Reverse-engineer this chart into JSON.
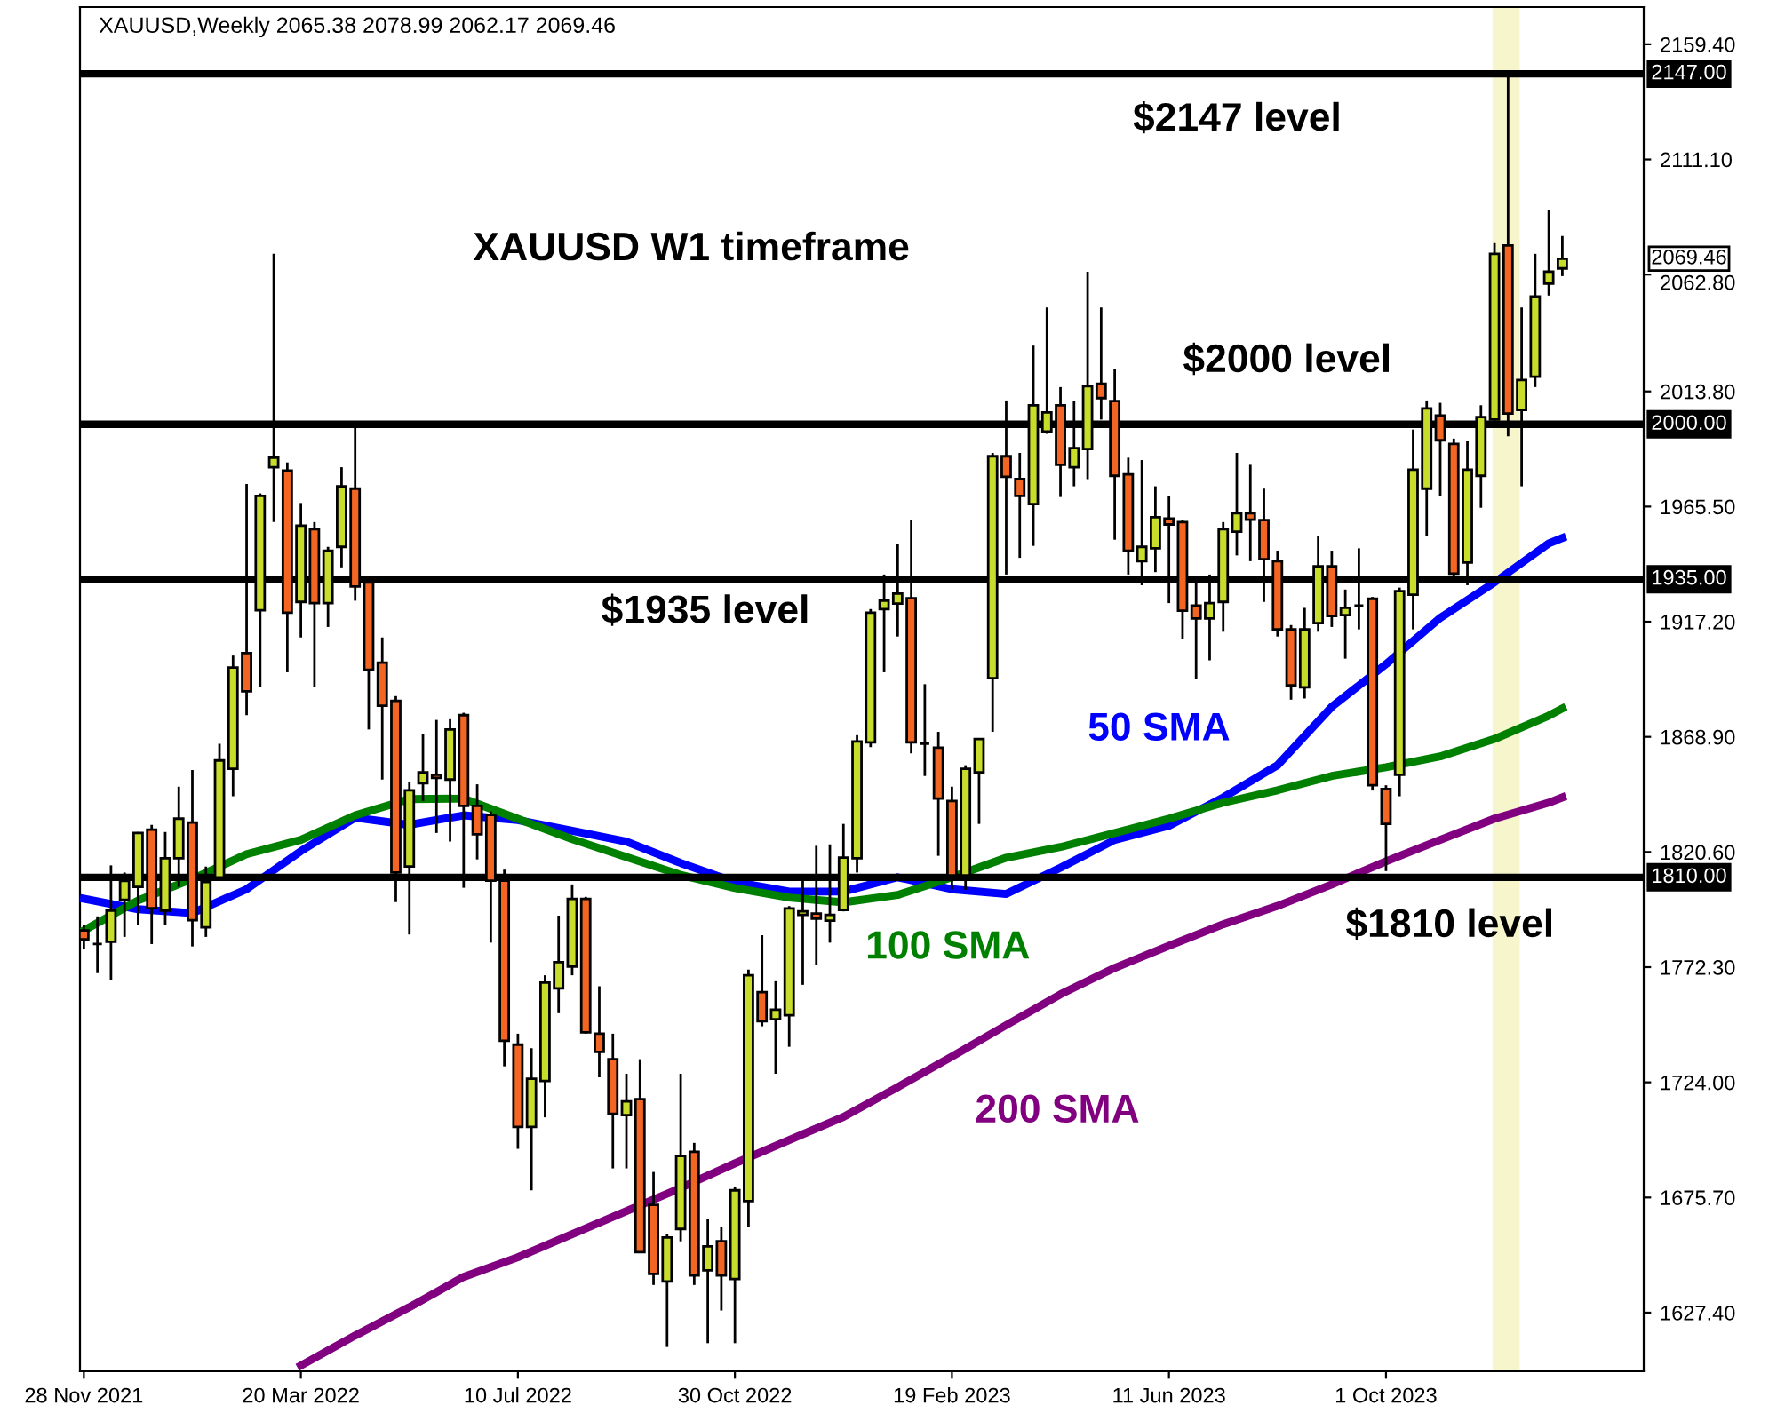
{
  "chart_data": {
    "type": "candlestick",
    "title": "XAUUSD,Weekly 2065.38 2078.99 2062.17 2069.46",
    "x": [
      "2021-11-28",
      "2021-12-05",
      "2021-12-12",
      "2021-12-19",
      "2021-12-26",
      "2022-01-02",
      "2022-01-09",
      "2022-01-16",
      "2022-01-23",
      "2022-01-30",
      "2022-02-06",
      "2022-02-13",
      "2022-02-20",
      "2022-02-27",
      "2022-03-06",
      "2022-03-13",
      "2022-03-20",
      "2022-03-27",
      "2022-04-03",
      "2022-04-10",
      "2022-04-17",
      "2022-04-24",
      "2022-05-01",
      "2022-05-08",
      "2022-05-15",
      "2022-05-22",
      "2022-05-29",
      "2022-06-05",
      "2022-06-12",
      "2022-06-19",
      "2022-06-26",
      "2022-07-03",
      "2022-07-10",
      "2022-07-17",
      "2022-07-24",
      "2022-07-31",
      "2022-08-07",
      "2022-08-14",
      "2022-08-21",
      "2022-08-28",
      "2022-09-04",
      "2022-09-11",
      "2022-09-18",
      "2022-09-25",
      "2022-10-02",
      "2022-10-09",
      "2022-10-16",
      "2022-10-23",
      "2022-10-30",
      "2022-11-06",
      "2022-11-13",
      "2022-11-20",
      "2022-11-27",
      "2022-12-04",
      "2022-12-11",
      "2022-12-18",
      "2022-12-25",
      "2023-01-01",
      "2023-01-08",
      "2023-01-15",
      "2023-01-22",
      "2023-01-29",
      "2023-02-05",
      "2023-02-12",
      "2023-02-19",
      "2023-02-26",
      "2023-03-05",
      "2023-03-12",
      "2023-03-19",
      "2023-03-26",
      "2023-04-02",
      "2023-04-09",
      "2023-04-16",
      "2023-04-23",
      "2023-04-30",
      "2023-05-07",
      "2023-05-14",
      "2023-05-21",
      "2023-05-28",
      "2023-06-04",
      "2023-06-11",
      "2023-06-18",
      "2023-06-25",
      "2023-07-02",
      "2023-07-09",
      "2023-07-16",
      "2023-07-23",
      "2023-07-30",
      "2023-08-06",
      "2023-08-13",
      "2023-08-20",
      "2023-08-27",
      "2023-09-03",
      "2023-09-10",
      "2023-09-17",
      "2023-09-24",
      "2023-10-01",
      "2023-10-08",
      "2023-10-15",
      "2023-10-22",
      "2023-10-29",
      "2023-11-05",
      "2023-11-12",
      "2023-11-19",
      "2023-11-26",
      "2023-12-03",
      "2023-12-10",
      "2023-12-17",
      "2023-12-24",
      "2023-12-31"
    ],
    "ohlc": [
      [
        1787.7,
        1790,
        1780,
        1784
      ],
      [
        1782,
        1793.6,
        1769.8,
        1782
      ],
      [
        1783,
        1815,
        1767,
        1796
      ],
      [
        1800.6,
        1812,
        1785,
        1808.5
      ],
      [
        1806,
        1829,
        1790,
        1828.6
      ],
      [
        1830,
        1832,
        1782,
        1797
      ],
      [
        1796,
        1829,
        1790,
        1818
      ],
      [
        1818,
        1848,
        1806,
        1834.6
      ],
      [
        1833,
        1855,
        1781,
        1792
      ],
      [
        1789,
        1814.5,
        1785,
        1808
      ],
      [
        1810,
        1866,
        1808.5,
        1859
      ],
      [
        1855.5,
        1903,
        1844,
        1898
      ],
      [
        1904,
        1975,
        1878,
        1888
      ],
      [
        1922,
        1971,
        1890,
        1970
      ],
      [
        1982,
        2071.5,
        1959,
        1986
      ],
      [
        1980.6,
        1984,
        1896,
        1921
      ],
      [
        1925.5,
        1967,
        1910.6,
        1957.5
      ],
      [
        1956,
        1959,
        1889.7,
        1925
      ],
      [
        1925,
        1948.6,
        1915,
        1947
      ],
      [
        1948.6,
        1982,
        1940,
        1974
      ],
      [
        1973,
        1999,
        1926,
        1932
      ],
      [
        1933.7,
        1935,
        1872,
        1897
      ],
      [
        1900,
        1910.6,
        1851,
        1882
      ],
      [
        1884,
        1886,
        1799.6,
        1812
      ],
      [
        1814.5,
        1850,
        1786,
        1846.5
      ],
      [
        1849.5,
        1870,
        1842,
        1854
      ],
      [
        1853,
        1876,
        1828.6,
        1851.7
      ],
      [
        1851,
        1876.3,
        1825,
        1872
      ],
      [
        1878,
        1879,
        1805.6,
        1840
      ],
      [
        1840,
        1849,
        1817.5,
        1828
      ],
      [
        1836.1,
        1837.6,
        1782.6,
        1808.6
      ],
      [
        1808.6,
        1813.2,
        1730.7,
        1741.4
      ],
      [
        1739.8,
        1744.4,
        1696.1,
        1705.3
      ],
      [
        1705.3,
        1738.3,
        1678.7,
        1725.5
      ],
      [
        1724.6,
        1768.9,
        1709.3,
        1765.8
      ],
      [
        1763.4,
        1793.9,
        1753,
        1774.4
      ],
      [
        1772.5,
        1807,
        1768.9,
        1800.9
      ],
      [
        1800.9,
        1801.8,
        1744.4,
        1745
      ],
      [
        1744.4,
        1764.3,
        1726.1,
        1736.8
      ],
      [
        1733.7,
        1744.4,
        1687.9,
        1710.8
      ],
      [
        1710.2,
        1727.6,
        1687.9,
        1716
      ],
      [
        1716.9,
        1733.7,
        1652.8,
        1652.8
      ],
      [
        1672.6,
        1686.4,
        1639,
        1643.6
      ],
      [
        1640.5,
        1660.4,
        1613,
        1658.9
      ],
      [
        1662.5,
        1727.6,
        1657.3,
        1693.1
      ],
      [
        1694.9,
        1698.6,
        1639,
        1643
      ],
      [
        1645.1,
        1666.5,
        1614.6,
        1655.2
      ],
      [
        1657.3,
        1663.4,
        1628.3,
        1643
      ],
      [
        1641.5,
        1680.3,
        1614.6,
        1678.7
      ],
      [
        1674.2,
        1771.3,
        1663.4,
        1768.9
      ],
      [
        1761.8,
        1785.7,
        1747.5,
        1749.6
      ],
      [
        1750.5,
        1766.4,
        1727.6,
        1754.5
      ],
      [
        1752.1,
        1797.9,
        1738.9,
        1796.9
      ],
      [
        1794.2,
        1808.6,
        1764.9,
        1795.7
      ],
      [
        1794.8,
        1823.2,
        1773.4,
        1792.7
      ],
      [
        1791.8,
        1823.8,
        1782.6,
        1794.2
      ],
      [
        1796.3,
        1832.4,
        1795.7,
        1818.3
      ],
      [
        1818,
        1869.6,
        1812,
        1867
      ],
      [
        1866.6,
        1922.5,
        1864.6,
        1921
      ],
      [
        1922.5,
        1937,
        1896,
        1926
      ],
      [
        1924.8,
        1950,
        1911,
        1929
      ],
      [
        1927,
        1960,
        1862,
        1866.6
      ],
      [
        1866,
        1891,
        1852.5,
        1866
      ],
      [
        1864.4,
        1871,
        1819,
        1843
      ],
      [
        1842,
        1848,
        1805,
        1810.8
      ],
      [
        1810.8,
        1857,
        1804.8,
        1855.5
      ],
      [
        1854,
        1868,
        1832.4,
        1868
      ],
      [
        1893.5,
        1988,
        1871,
        1986.6
      ],
      [
        1986.6,
        2010,
        1937,
        1978
      ],
      [
        1977,
        1988,
        1944,
        1970
      ],
      [
        1966.5,
        2033,
        1949,
        2008
      ],
      [
        1997,
        2049,
        1996,
        2005
      ],
      [
        2008,
        2015.6,
        1969.5,
        1983
      ],
      [
        1982,
        2009.7,
        1974,
        1990
      ],
      [
        1989.6,
        2064,
        1977,
        2016
      ],
      [
        2017,
        2049,
        2002,
        2011
      ],
      [
        2009.7,
        2023,
        1951.6,
        1978.4
      ],
      [
        1979,
        1986,
        1937,
        1947
      ],
      [
        1942.6,
        1985,
        1932.5,
        1948.6
      ],
      [
        1948,
        1974,
        1938,
        1961
      ],
      [
        1960.5,
        1970,
        1925,
        1958
      ],
      [
        1959,
        1960,
        1910,
        1921.8
      ],
      [
        1924,
        1934,
        1893,
        1918.6
      ],
      [
        1918.6,
        1937,
        1901,
        1925
      ],
      [
        1925.5,
        1959,
        1913,
        1956
      ],
      [
        1955,
        1988,
        1945,
        1962.75
      ],
      [
        1962.75,
        1983,
        1942.6,
        1960
      ],
      [
        1959.8,
        1973,
        1925.5,
        1943.4
      ],
      [
        1942.6,
        1947,
        1911,
        1914
      ],
      [
        1914,
        1915.8,
        1884.5,
        1890.5
      ],
      [
        1889.7,
        1923,
        1885,
        1914
      ],
      [
        1916.6,
        1953,
        1913,
        1940.4
      ],
      [
        1940.4,
        1947,
        1915,
        1919.6
      ],
      [
        1920,
        1930.7,
        1901.7,
        1923
      ],
      [
        1924,
        1948,
        1914,
        1924
      ],
      [
        1926.8,
        1927.6,
        1846.4,
        1848.6
      ],
      [
        1847,
        1848.6,
        1812.6,
        1832.4
      ],
      [
        1853,
        1931.5,
        1844,
        1930
      ],
      [
        1928.5,
        1997.8,
        1914,
        1981
      ],
      [
        1973,
        2010,
        1953,
        2006.7
      ],
      [
        2003.7,
        2009,
        1970,
        1993.3
      ],
      [
        1991.8,
        1994,
        1933.7,
        1937.4
      ],
      [
        1942,
        1993,
        1932.5,
        1981
      ],
      [
        1978.4,
        2008,
        1965,
        2003
      ],
      [
        2002,
        2076,
        2000,
        2071.5
      ],
      [
        2075,
        2147,
        1995,
        2004.5
      ],
      [
        2006,
        2049,
        1974,
        2018.6
      ],
      [
        2020,
        2071.5,
        2015.6,
        2053.6
      ],
      [
        2059,
        2090,
        2054,
        2064
      ],
      [
        2065.38,
        2078.99,
        2062.17,
        2069.46
      ]
    ],
    "colors": [
      "#f26522",
      "#000000",
      "#c8dc2c",
      "#c8dc2c",
      "#c8dc2c",
      "#f26522",
      "#c8dc2c",
      "#c8dc2c",
      "#f26522",
      "#c8dc2c",
      "#c8dc2c",
      "#c8dc2c",
      "#f26522",
      "#c8dc2c",
      "#c8dc2c",
      "#f26522",
      "#c8dc2c",
      "#f26522",
      "#c8dc2c",
      "#c8dc2c",
      "#f26522",
      "#f26522",
      "#f26522",
      "#f26522",
      "#c8dc2c",
      "#c8dc2c",
      "#f26522",
      "#c8dc2c",
      "#f26522",
      "#f26522",
      "#f26522",
      "#f26522",
      "#f26522",
      "#c8dc2c",
      "#c8dc2c",
      "#c8dc2c",
      "#c8dc2c",
      "#f26522",
      "#f26522",
      "#f26522",
      "#c8dc2c",
      "#f26522",
      "#f26522",
      "#c8dc2c",
      "#c8dc2c",
      "#f26522",
      "#c8dc2c",
      "#f26522",
      "#c8dc2c",
      "#c8dc2c",
      "#f26522",
      "#c8dc2c",
      "#c8dc2c",
      "#c8dc2c",
      "#f26522",
      "#c8dc2c",
      "#c8dc2c",
      "#c8dc2c",
      "#c8dc2c",
      "#c8dc2c",
      "#c8dc2c",
      "#f26522",
      "#000000",
      "#f26522",
      "#f26522",
      "#c8dc2c",
      "#c8dc2c",
      "#c8dc2c",
      "#f26522",
      "#f26522",
      "#c8dc2c",
      "#c8dc2c",
      "#f26522",
      "#c8dc2c",
      "#c8dc2c",
      "#f26522",
      "#f26522",
      "#f26522",
      "#c8dc2c",
      "#c8dc2c",
      "#f26522",
      "#f26522",
      "#f26522",
      "#c8dc2c",
      "#c8dc2c",
      "#c8dc2c",
      "#f26522",
      "#f26522",
      "#f26522",
      "#f26522",
      "#c8dc2c",
      "#c8dc2c",
      "#f26522",
      "#c8dc2c",
      "#000000",
      "#f26522",
      "#f26522",
      "#c8dc2c",
      "#c8dc2c",
      "#c8dc2c",
      "#f26522",
      "#f26522",
      "#c8dc2c",
      "#c8dc2c",
      "#c8dc2c",
      "#f26522",
      "#c8dc2c",
      "#c8dc2c",
      "#c8dc2c",
      "#c8dc2c"
    ],
    "series": [
      {
        "name": "50 SMA",
        "type": "line",
        "color": "#0000ff",
        "x": [
          "2021-11-28",
          "2021-12-26",
          "2022-01-23",
          "2022-02-20",
          "2022-03-20",
          "2022-04-17",
          "2022-05-15",
          "2022-06-12",
          "2022-07-10",
          "2022-08-07",
          "2022-09-04",
          "2022-10-02",
          "2022-10-30",
          "2022-11-27",
          "2022-12-25",
          "2023-01-22",
          "2023-02-19",
          "2023-03-19",
          "2023-04-16",
          "2023-05-14",
          "2023-06-11",
          "2023-07-09",
          "2023-08-06",
          "2023-09-03",
          "2023-10-01",
          "2023-10-29",
          "2023-11-26",
          "2023-12-24",
          "2023-12-31"
        ],
        "values": [
          1801,
          1796.6,
          1795,
          1805,
          1821,
          1835,
          1832,
          1836,
          1834,
          1829.5,
          1825,
          1816,
          1808,
          1804,
          1804,
          1810,
          1805,
          1803,
          1814,
          1825.7,
          1831.6,
          1843.5,
          1857,
          1881.5,
          1899.4,
          1918.8,
          1933.7,
          1950,
          1952.3
        ]
      },
      {
        "name": "100 SMA",
        "type": "line",
        "color": "#008000",
        "x": [
          "2021-11-28",
          "2021-12-26",
          "2022-01-23",
          "2022-02-20",
          "2022-03-20",
          "2022-04-17",
          "2022-05-15",
          "2022-06-12",
          "2022-07-10",
          "2022-08-07",
          "2022-09-04",
          "2022-10-02",
          "2022-10-30",
          "2022-11-27",
          "2022-12-25",
          "2023-01-22",
          "2023-02-19",
          "2023-03-19",
          "2023-04-16",
          "2023-05-14",
          "2023-06-11",
          "2023-07-09",
          "2023-08-06",
          "2023-09-03",
          "2023-10-01",
          "2023-10-29",
          "2023-11-26",
          "2023-12-24",
          "2023-12-31"
        ],
        "values": [
          1787.7,
          1800.3,
          1809.3,
          1819.7,
          1825.7,
          1836,
          1842.8,
          1843,
          1834.5,
          1826,
          1818.5,
          1811,
          1805.5,
          1801.5,
          1799.5,
          1802.6,
          1810,
          1818.2,
          1822.7,
          1828.6,
          1834.6,
          1841.3,
          1846.5,
          1852.5,
          1856.2,
          1860.7,
          1868,
          1877.8,
          1880.8
        ]
      },
      {
        "name": "200 SMA",
        "type": "line",
        "color": "#800080",
        "x": [
          "2022-03-20",
          "2022-04-17",
          "2022-05-15",
          "2022-06-12",
          "2022-07-10",
          "2022-08-07",
          "2022-09-04",
          "2022-10-02",
          "2022-10-30",
          "2022-11-27",
          "2022-12-25",
          "2023-01-22",
          "2023-02-19",
          "2023-03-19",
          "2023-04-16",
          "2023-05-14",
          "2023-06-11",
          "2023-07-09",
          "2023-08-06",
          "2023-09-03",
          "2023-10-01",
          "2023-10-29",
          "2023-11-26",
          "2023-12-24",
          "2023-12-31"
        ],
        "values": [
          1605.2,
          1617.8,
          1629.7,
          1642.4,
          1650.6,
          1660.3,
          1670,
          1679.7,
          1690,
          1699.8,
          1709.5,
          1722,
          1734.8,
          1748,
          1760.9,
          1772,
          1781.3,
          1790.3,
          1798,
          1807,
          1816.7,
          1825.7,
          1834.6,
          1841.3,
          1843.5
        ]
      }
    ],
    "xlim": [
      "2021-11-26",
      "2024-02-11"
    ],
    "xticks": [
      {
        "value": "2021-11-28",
        "label": "28 Nov 2021"
      },
      {
        "value": "2022-03-20",
        "label": "20 Mar 2022"
      },
      {
        "value": "2022-07-10",
        "label": "10 Jul 2022"
      },
      {
        "value": "2022-10-30",
        "label": "30 Oct 2022"
      },
      {
        "value": "2023-02-19",
        "label": "19 Feb 2023"
      },
      {
        "value": "2023-06-11",
        "label": "11 Jun 2023"
      },
      {
        "value": "2023-10-01",
        "label": "1 Oct 2023"
      }
    ],
    "ylim": [
      1602.8,
      2175
    ],
    "yticks": [
      {
        "value": 2159.4,
        "label": "2159.40"
      },
      {
        "value": 2111.1,
        "label": "2111.10"
      },
      {
        "value": 2062.8,
        "label": "2062.80"
      },
      {
        "value": 2013.8,
        "label": "2013.80"
      },
      {
        "value": 1965.5,
        "label": "1965.50"
      },
      {
        "value": 1917.2,
        "label": "1917.20"
      },
      {
        "value": 1868.9,
        "label": "1868.90"
      },
      {
        "value": 1820.6,
        "label": "1820.60"
      },
      {
        "value": 1772.3,
        "label": "1772.30"
      },
      {
        "value": 1724,
        "label": "1724.00"
      },
      {
        "value": 1675.7,
        "label": "1675.70"
      },
      {
        "value": 1627.4,
        "label": "1627.40"
      }
    ],
    "ref_lines": [
      {
        "axis": "y",
        "value": 2147,
        "label": "2147.00",
        "color": "#000000",
        "line_style": "solid"
      },
      {
        "axis": "y",
        "value": 2000,
        "label": "2000.00",
        "color": "#000000",
        "line_style": "solid"
      },
      {
        "axis": "y",
        "value": 1935,
        "label": "1935.00",
        "color": "#000000",
        "line_style": "solid"
      },
      {
        "axis": "y",
        "value": 1810,
        "label": "1810.00",
        "color": "#000000",
        "line_style": "solid"
      }
    ],
    "bands": [
      {
        "axis": "x",
        "from": "2023-11-25",
        "to": "2023-12-09",
        "color": "#f7f5cc"
      }
    ],
    "annotations": [
      "$2147 level",
      "XAUUSD W1 timeframe",
      "$2000 level",
      "$1935 level",
      "$1810 level",
      "2069.46"
    ],
    "grid": false,
    "legend": false,
    "marker": "none",
    "line_style": "solid"
  }
}
